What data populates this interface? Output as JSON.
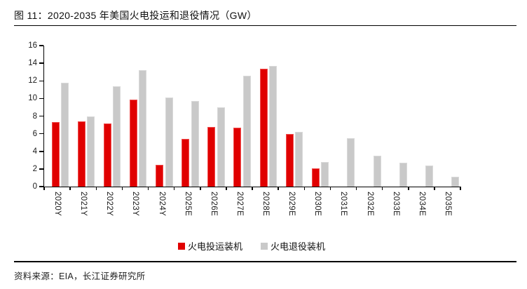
{
  "figure": {
    "title": "图  11：2020-2035 年美国火电投运和退役情况（GW）",
    "source": "资料来源：EIA，长江证券研究所"
  },
  "chart_data": {
    "type": "bar",
    "title": "2020-2035 年美国火电投运和退役情况（GW）",
    "categories": [
      "2020Y",
      "2021Y",
      "2022Y",
      "2023Y",
      "2024Y",
      "2025E",
      "2026E",
      "2027E",
      "2028E",
      "2029E",
      "2030E",
      "2031E",
      "2032E",
      "2033E",
      "2034E",
      "2035E"
    ],
    "series": [
      {
        "name": "火电投运装机",
        "color": "#e00000",
        "values": [
          7.3,
          7.4,
          7.2,
          9.9,
          2.5,
          5.4,
          6.8,
          6.7,
          13.4,
          6.0,
          2.1,
          0,
          0,
          0,
          0,
          0
        ]
      },
      {
        "name": "火电退役装机",
        "color": "#c9c9c9",
        "values": [
          11.8,
          8.0,
          11.4,
          13.2,
          10.1,
          9.7,
          9.0,
          12.6,
          13.7,
          6.2,
          2.8,
          5.5,
          3.5,
          2.7,
          2.4,
          1.1
        ]
      }
    ],
    "xlabel": "",
    "ylabel": "",
    "ylim": [
      0,
      16
    ],
    "ytick_step": 2,
    "grid": false,
    "legend_position": "bottom",
    "axis_color": "#000000",
    "label_color": "#1a1a1a"
  }
}
